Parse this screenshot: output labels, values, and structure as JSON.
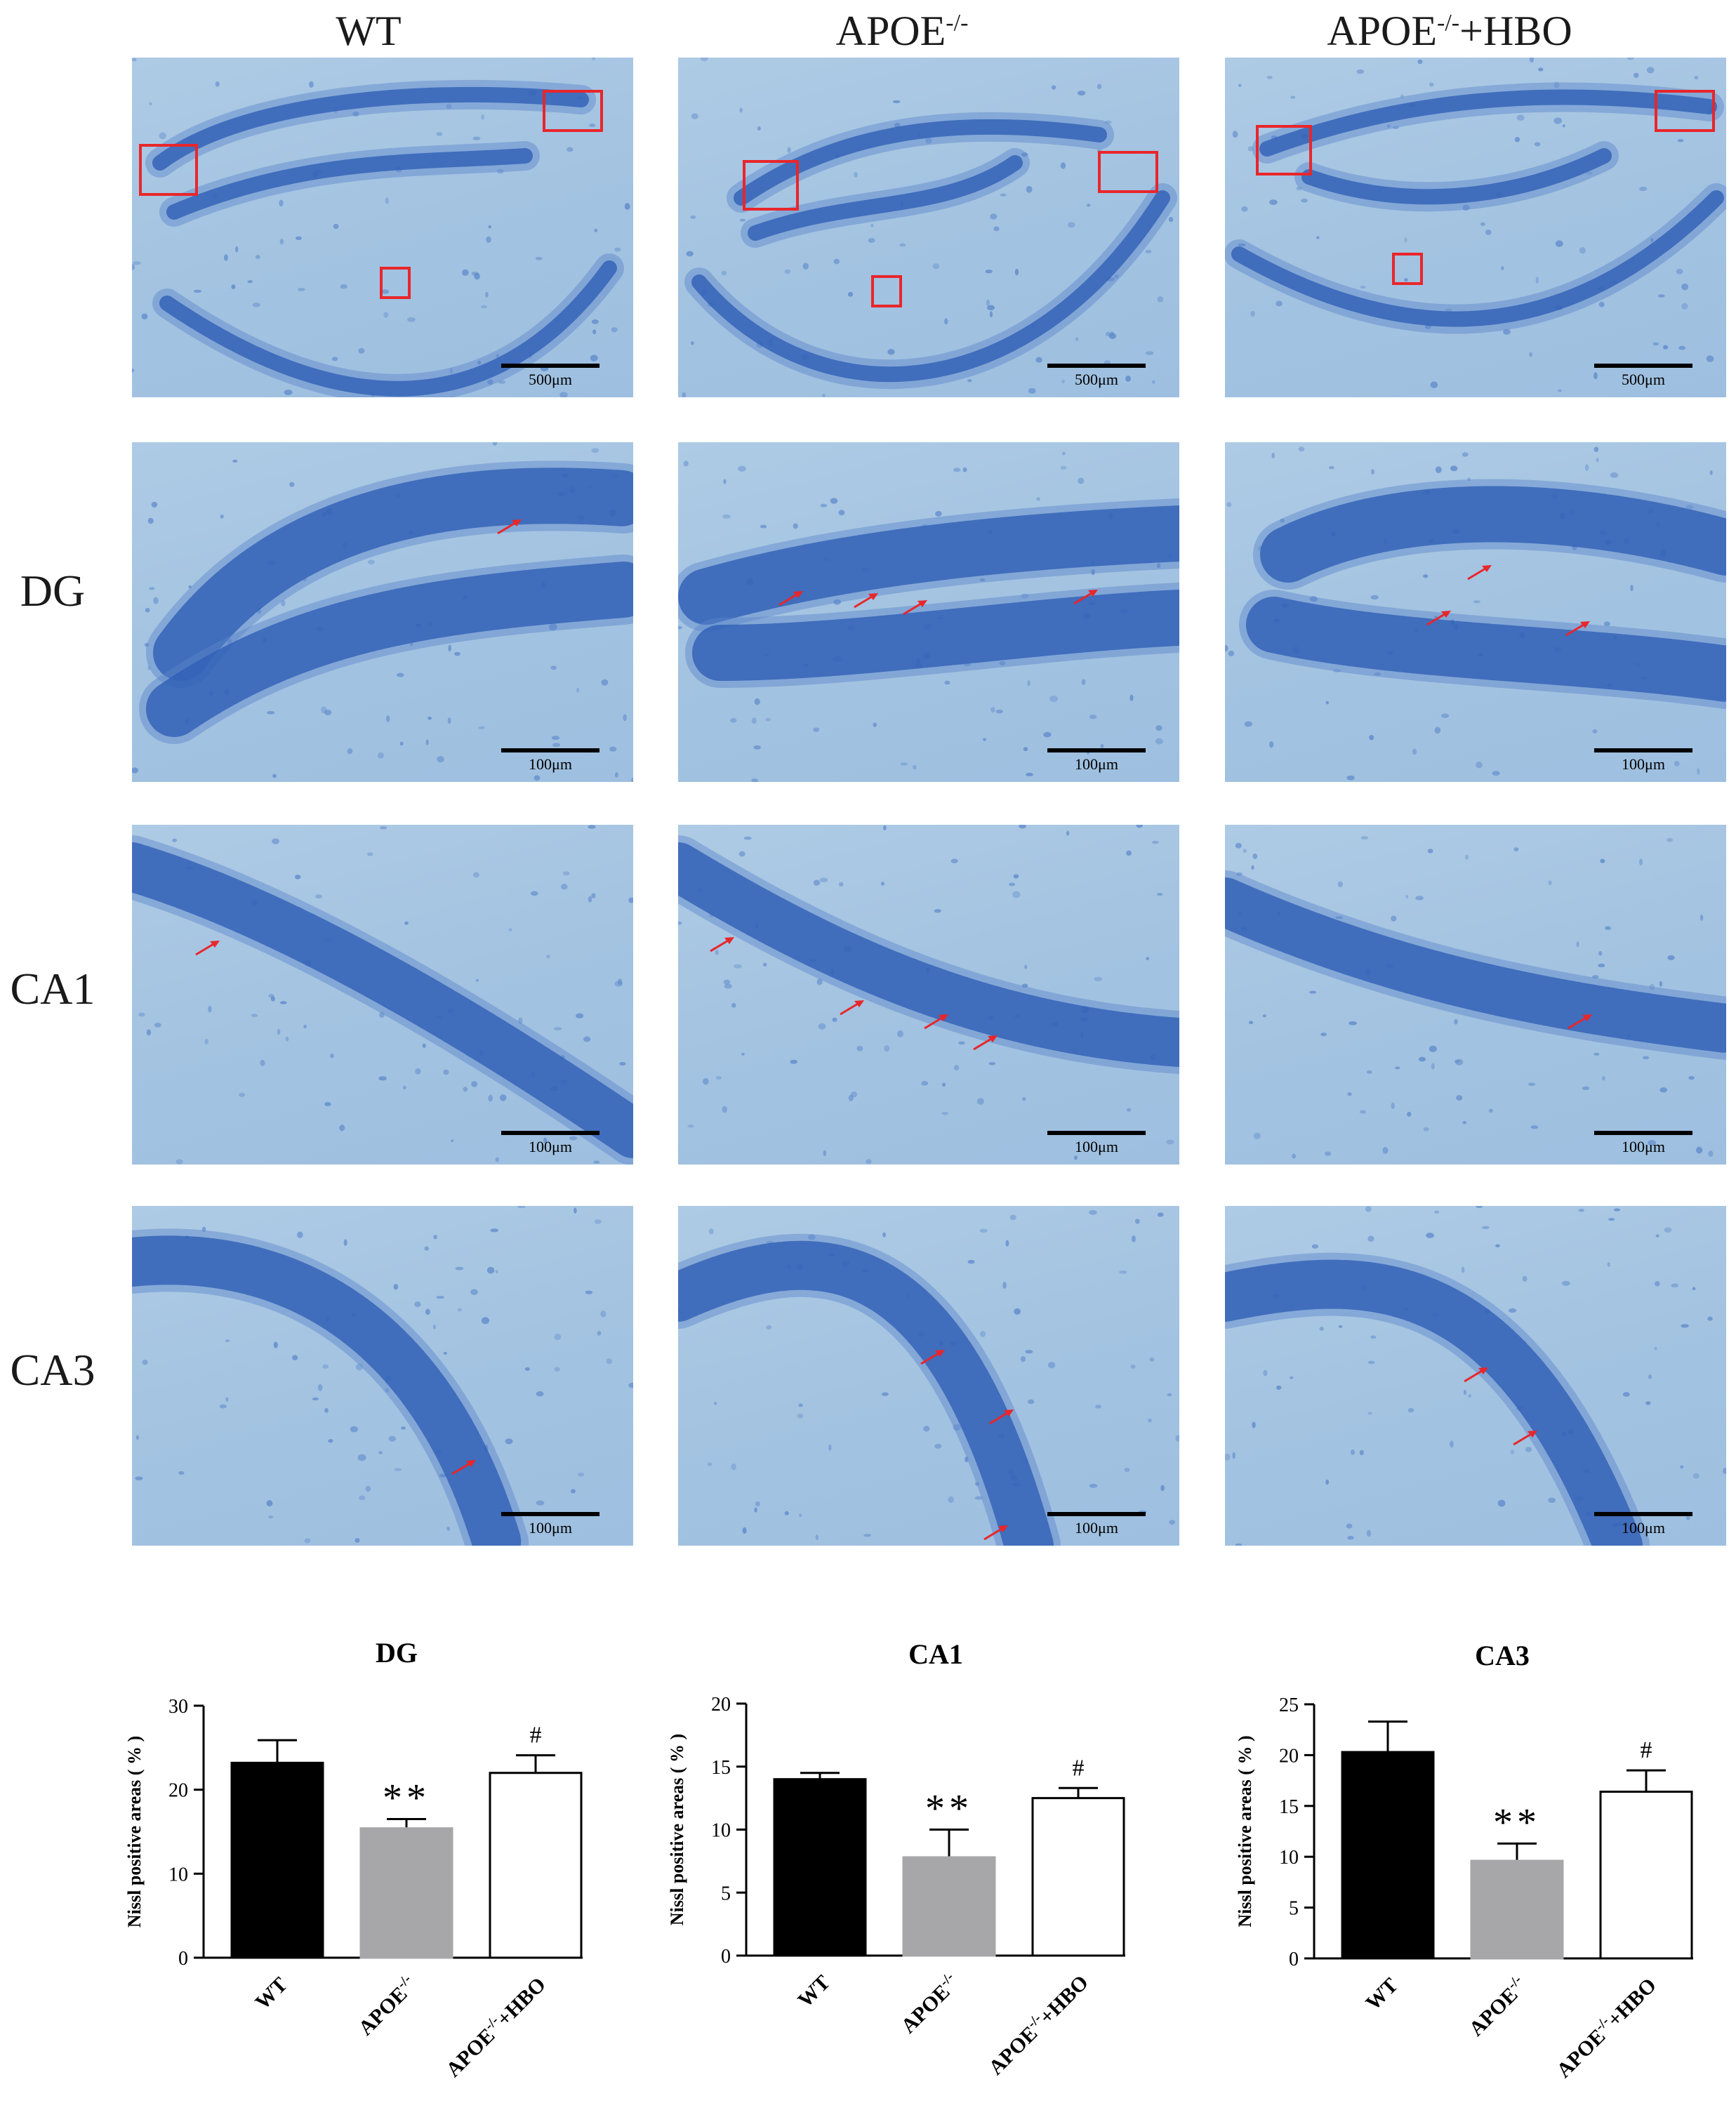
{
  "figure": {
    "columns": [
      {
        "base": "WT",
        "sup": "",
        "suffix": ""
      },
      {
        "base": "APOE",
        "sup": "-/-",
        "suffix": ""
      },
      {
        "base": "APOE",
        "sup": "-/-",
        "suffix": "+HBO"
      }
    ],
    "rows": [
      "",
      "DG",
      "CA1",
      "CA3"
    ],
    "scale_labels": [
      "500μm",
      "100μm",
      "100μm",
      "100μm"
    ]
  },
  "colors": {
    "bar_wt": "#000000",
    "bar_apoe": "#a7a7aa",
    "bar_hbo": "#ffffff",
    "box_red": "#e8262b",
    "arrow_red": "#e8262b",
    "stain_dark": "#2f5fb5",
    "stain_mid": "#5a86c9",
    "stain_light": "#a3c3e1"
  },
  "chart_data": [
    {
      "type": "bar",
      "title": "DG",
      "ylabel": "Nissl positive areas ( % )",
      "categories": [
        "WT",
        "APOE-/-",
        "APOE-/-+HBO"
      ],
      "values": [
        23.2,
        15.4,
        22.0
      ],
      "errors": [
        2.7,
        1.1,
        2.1
      ],
      "annotations": [
        "",
        "**",
        "#"
      ],
      "ylim": [
        0,
        30
      ],
      "yticks": [
        0,
        10,
        20,
        30
      ]
    },
    {
      "type": "bar",
      "title": "CA1",
      "ylabel": "Nissl positive areas ( % )",
      "categories": [
        "WT",
        "APOE-/-",
        "APOE-/-+HBO"
      ],
      "values": [
        14.0,
        7.8,
        12.5
      ],
      "errors": [
        0.5,
        2.2,
        0.8
      ],
      "annotations": [
        "",
        "**",
        "#"
      ],
      "ylim": [
        0,
        20
      ],
      "yticks": [
        0,
        5,
        10,
        15,
        20
      ]
    },
    {
      "type": "bar",
      "title": "CA3",
      "ylabel": "Nissl positive areas ( % )",
      "categories": [
        "WT",
        "APOE-/-",
        "APOE-/-+HBO"
      ],
      "values": [
        20.3,
        9.6,
        16.4
      ],
      "errors": [
        3.0,
        1.7,
        2.1
      ],
      "annotations": [
        "",
        "**",
        "#"
      ],
      "ylim": [
        0,
        25
      ],
      "yticks": [
        0,
        5,
        10,
        15,
        20,
        25
      ]
    }
  ]
}
